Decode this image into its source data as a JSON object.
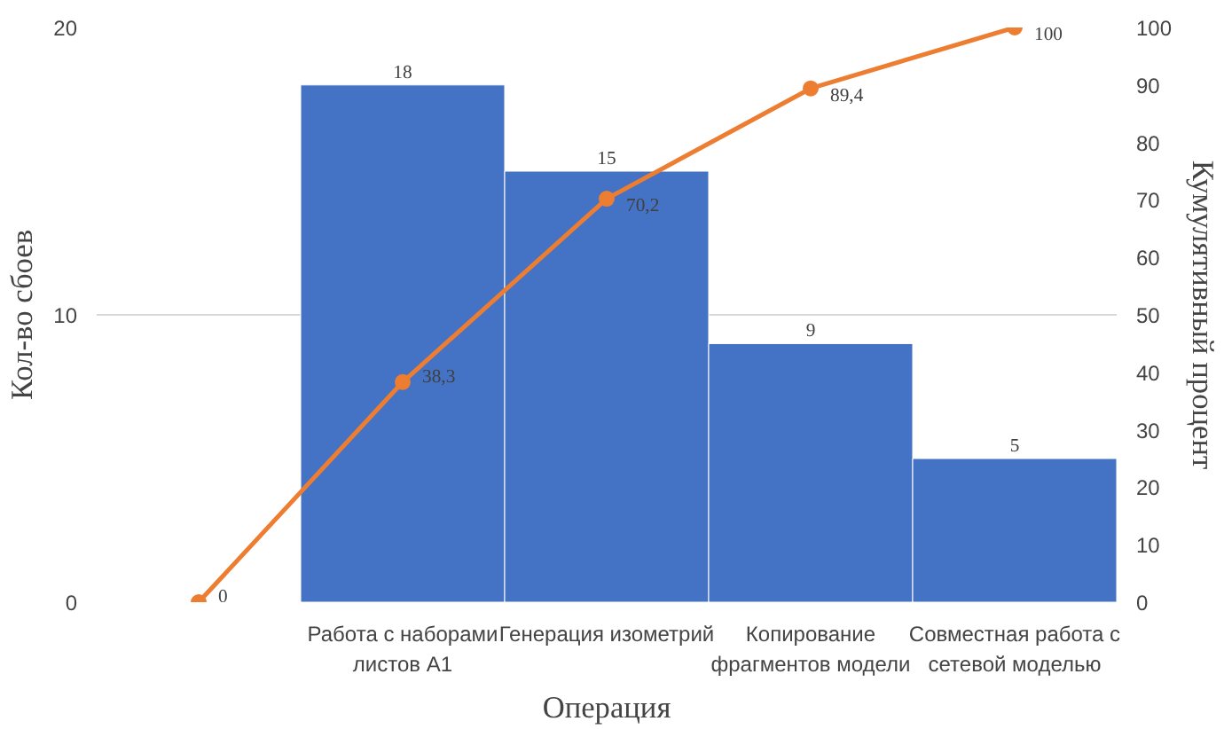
{
  "chart_data": {
    "type": "bar",
    "xlabel": "Операция",
    "ylabel": "Кол-во сбоев",
    "y2label": "Кумулятивный процент",
    "categories": [
      null,
      "Работа с наборами листов А1",
      "Генерация изометрий",
      "Копирование фрагментов модели",
      "Совместная работа с сетевой моделью"
    ],
    "series": [
      {
        "color": "#4472c4",
        "values": [
          null,
          18,
          15,
          9,
          5
        ],
        "value_labels": [
          null,
          "18",
          "15",
          "9",
          "5"
        ]
      },
      {
        "type": "line",
        "axis": "y2",
        "color": "#ed7d31",
        "marker": "circle",
        "values": [
          0,
          38.3,
          70.2,
          89.4,
          100
        ],
        "value_labels": [
          "0",
          "38,3",
          "70,2",
          "89,4",
          "100"
        ]
      }
    ],
    "ylim": [
      0,
      20
    ],
    "yticks": [
      0,
      10,
      20
    ],
    "y2lim": [
      0,
      100
    ],
    "y2ticks": [
      0,
      10,
      20,
      30,
      40,
      50,
      60,
      70,
      80,
      90,
      100
    ],
    "grid": "y"
  }
}
